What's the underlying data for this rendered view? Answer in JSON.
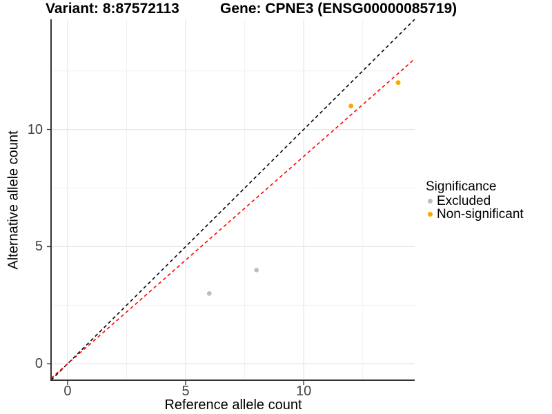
{
  "titles": {
    "variant": "Variant: 8:87572113",
    "gene": "Gene: CPNE3 (ENSG00000085719)"
  },
  "axes": {
    "x_label": "Reference allele count",
    "y_label": "Alternative allele count",
    "x_ticks": [
      0,
      5,
      10
    ],
    "y_ticks": [
      0,
      5,
      10
    ]
  },
  "legend": {
    "title": "Significance",
    "items": [
      {
        "label": "Excluded",
        "color": "#BEBEBE"
      },
      {
        "label": "Non-significant",
        "color": "#FFA500"
      }
    ]
  },
  "chart_data": {
    "type": "scatter",
    "title": "Variant: 8:87572113 | Gene: CPNE3 (ENSG00000085719)",
    "xlabel": "Reference allele count",
    "ylabel": "Alternative allele count",
    "xlim": [
      -0.7,
      14.7
    ],
    "ylim": [
      -0.7,
      14.7
    ],
    "grid": {
      "major": [
        0,
        5,
        10
      ],
      "minor": [
        2.5,
        7.5,
        12.5
      ],
      "major_color": "#E4E4E4",
      "minor_color": "#F1F1F1"
    },
    "series": [
      {
        "name": "Excluded",
        "color": "#BEBEBE",
        "points": [
          [
            6,
            3
          ],
          [
            8,
            4
          ]
        ]
      },
      {
        "name": "Non-significant",
        "color": "#FFA500",
        "points": [
          [
            12,
            11
          ],
          [
            14,
            12
          ]
        ]
      }
    ],
    "lines": [
      {
        "name": "identity-line",
        "slope": 1,
        "intercept": 0,
        "color": "#000000",
        "style": "dashed"
      },
      {
        "name": "fit-line",
        "slope": 0.885,
        "intercept": 0,
        "color": "#FF0000",
        "style": "dashed"
      }
    ],
    "axis_color": "#333333",
    "legend_position": "right"
  }
}
